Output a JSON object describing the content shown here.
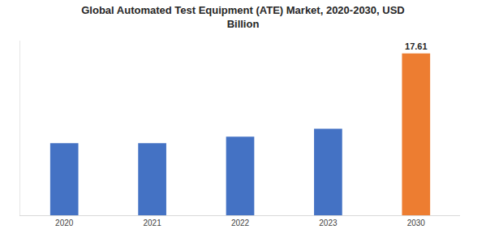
{
  "chart_data": {
    "type": "bar",
    "title": "Global Automated Test Equipment (ATE) Market, 2020-2030, USD Billion",
    "categories": [
      "2020",
      "2021",
      "2022",
      "2023",
      "2030"
    ],
    "values": [
      7.84,
      7.84,
      8.54,
      9.42,
      17.61
    ],
    "colors": [
      "#4472c4",
      "#4472c4",
      "#4472c4",
      "#4472c4",
      "#ed7d31"
    ],
    "data_labels": true,
    "value_labels": [
      null,
      null,
      null,
      null,
      "17.61"
    ],
    "ylim": [
      0,
      19
    ],
    "yticks": [],
    "grid": false,
    "tick_labels": "x"
  }
}
